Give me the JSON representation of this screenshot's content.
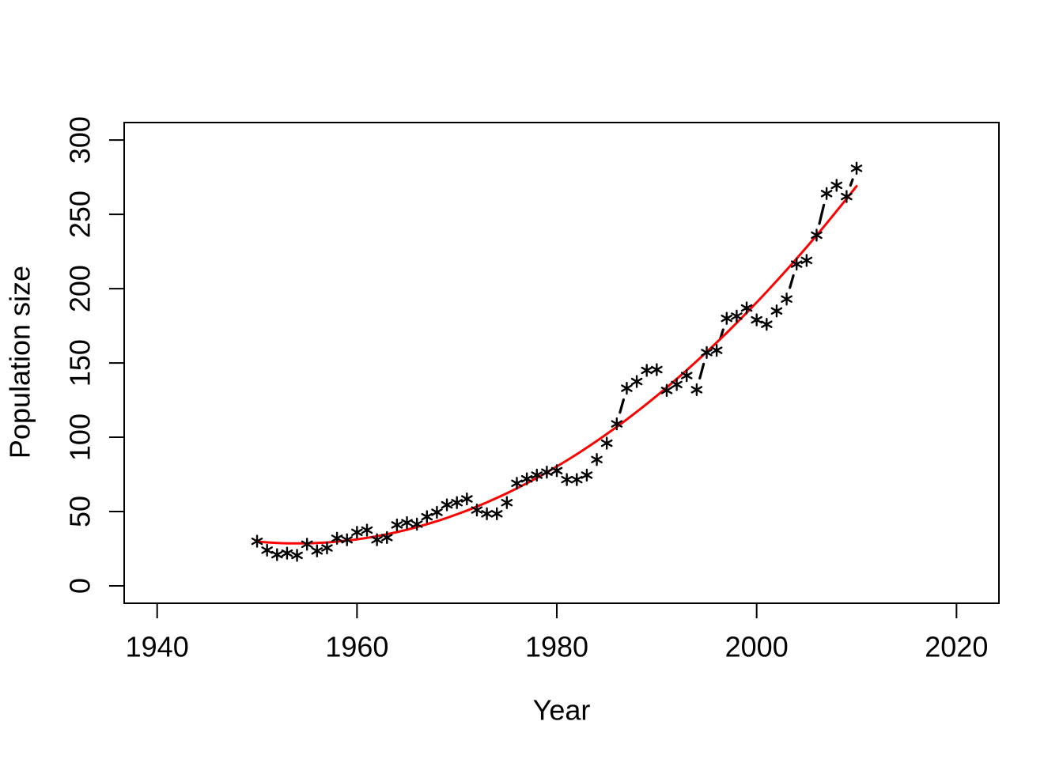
{
  "figure": {
    "background": "#ffffff",
    "description": "R base-graphics scatter plot of population size versus year with asterisk markers, short dashed connector segments on large jumps, and a red quadratic trend curve"
  },
  "chart_data": {
    "type": "scatter",
    "title": "",
    "xlabel": "Year",
    "ylabel": "Population size",
    "xticks": [
      1940,
      1960,
      1980,
      2000,
      2020
    ],
    "yticks": [
      0,
      50,
      100,
      150,
      200,
      250,
      300
    ],
    "xlim": [
      1936.7,
      2024.3
    ],
    "ylim": [
      -11.7,
      311.7
    ],
    "grid": false,
    "legend": "none",
    "marker": "*",
    "marker_color": "#000000",
    "connector_color": "#000000",
    "trend_color": "#ff0000",
    "x": [
      1950,
      1951,
      1952,
      1953,
      1954,
      1955,
      1956,
      1957,
      1958,
      1959,
      1960,
      1961,
      1962,
      1963,
      1964,
      1965,
      1966,
      1967,
      1968,
      1969,
      1970,
      1971,
      1972,
      1973,
      1974,
      1975,
      1976,
      1977,
      1978,
      1979,
      1980,
      1981,
      1982,
      1983,
      1984,
      1985,
      1986,
      1987,
      1988,
      1989,
      1990,
      1991,
      1992,
      1993,
      1994,
      1995,
      1996,
      1997,
      1998,
      1999,
      2000,
      2001,
      2002,
      2003,
      2004,
      2005,
      2006,
      2007,
      2008,
      2009,
      2010
    ],
    "values": [
      30,
      24,
      21,
      22,
      20.5,
      28,
      23.5,
      25.5,
      32,
      31,
      36,
      37.5,
      31,
      32.5,
      41,
      42.5,
      41.5,
      46.5,
      49.5,
      54.5,
      56,
      58.5,
      51,
      48.5,
      48.5,
      56,
      69,
      72,
      74.5,
      76.5,
      77.5,
      71.5,
      71.5,
      74.5,
      85,
      96,
      109,
      133,
      137.5,
      145,
      145.5,
      131.5,
      135.5,
      141.5,
      132,
      157,
      158.5,
      180,
      181.5,
      187,
      179,
      176,
      185,
      193,
      216.5,
      219,
      236,
      264,
      269.5,
      262,
      281
    ],
    "trend_fit": {
      "model": "quadratic",
      "formula": "value = a + b*(year-1950) + c*(year-1950)^2",
      "a": 29.8,
      "b": -0.6178,
      "c": 0.07674,
      "range": [
        1950,
        2010
      ]
    }
  }
}
